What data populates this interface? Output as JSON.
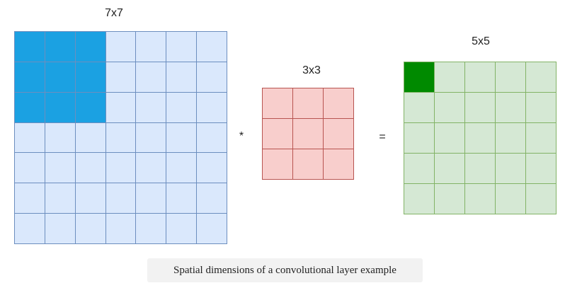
{
  "input": {
    "label": "7x7",
    "rows": 7,
    "cols": 7,
    "highlight": {
      "rows": 3,
      "cols": 3
    },
    "fill": "#dae8fc",
    "border": "#6c8ebf",
    "highlight_fill": "#1ba1e2"
  },
  "operator_multiply": "*",
  "kernel": {
    "label": "3x3",
    "rows": 3,
    "cols": 3,
    "fill": "#f8cecc",
    "border": "#b85450"
  },
  "operator_equals": "=",
  "output": {
    "label": "5x5",
    "rows": 5,
    "cols": 5,
    "highlight": {
      "rows": 1,
      "cols": 1
    },
    "fill": "#d5e8d4",
    "border": "#82b366",
    "highlight_fill": "#008a00"
  },
  "caption": "Spatial dimensions of a convolutional layer example"
}
